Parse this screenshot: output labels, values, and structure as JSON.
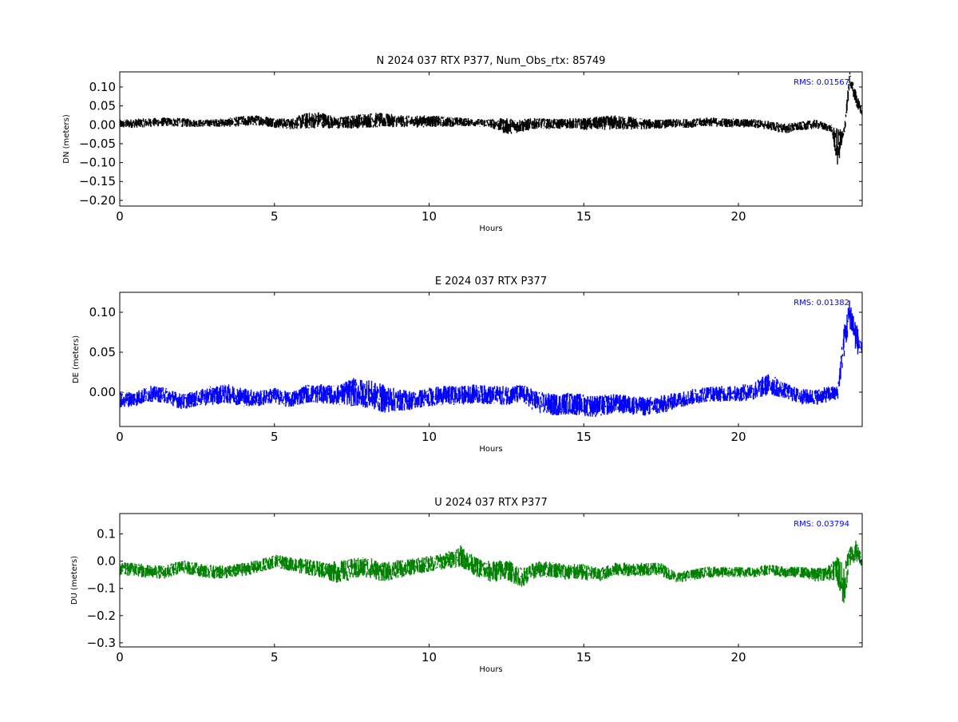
{
  "chart_data": [
    {
      "type": "scatter",
      "title": "N 2024 037 RTX  P377, Num_Obs_rtx: 85749",
      "xlabel": "Hours",
      "ylabel": "DN (meters)",
      "xlim": [
        0,
        24
      ],
      "ylim": [
        -0.215,
        0.14
      ],
      "xticks": [
        0,
        5,
        10,
        15,
        20
      ],
      "xtick_labels": [
        "0",
        "5",
        "10",
        "15",
        "20"
      ],
      "yticks": [
        0.1,
        0.05,
        0.0,
        -0.05,
        -0.1,
        -0.15,
        -0.2
      ],
      "ytick_labels": [
        "0.10",
        "0.05",
        "0.00",
        "−0.05",
        "−0.10",
        "−0.15",
        "−0.20"
      ],
      "annotation": "RMS:  0.01567",
      "color": "#000000",
      "grid": false,
      "series": [
        {
          "x": [
            0,
            0.5,
            1,
            1.5,
            2,
            2.5,
            3,
            3.5,
            4,
            4.5,
            5,
            5.5,
            6,
            6.5,
            7,
            7.5,
            8,
            8.5,
            9,
            9.5,
            10,
            10.5,
            11,
            11.5,
            12,
            12.5,
            13,
            13.5,
            14,
            14.5,
            15,
            15.5,
            16,
            16.5,
            17,
            17.5,
            18,
            18.5,
            19,
            19.5,
            20,
            20.5,
            21,
            21.5,
            22,
            22.5,
            23,
            23.2,
            23.4,
            23.6,
            23.8,
            24
          ],
          "y": [
            0.002,
            0.004,
            0.006,
            0.008,
            0.006,
            0.004,
            0.005,
            0.006,
            0.01,
            0.012,
            0.006,
            0.002,
            0.01,
            0.014,
            0.004,
            0.008,
            0.012,
            0.012,
            0.01,
            0.008,
            0.01,
            0.008,
            0.008,
            0.006,
            0.004,
            -0.004,
            -0.002,
            0.004,
            0.002,
            0.004,
            0.002,
            0.004,
            0.006,
            0.004,
            0.002,
            0.002,
            0.004,
            0.004,
            0.008,
            0.006,
            0.004,
            0.004,
            -0.002,
            -0.01,
            -0.004,
            0.002,
            -0.01,
            -0.06,
            -0.03,
            0.12,
            0.07,
            0.03
          ],
          "spread": [
            0.012,
            0.012,
            0.012,
            0.012,
            0.012,
            0.01,
            0.01,
            0.012,
            0.014,
            0.014,
            0.014,
            0.014,
            0.022,
            0.022,
            0.016,
            0.018,
            0.02,
            0.02,
            0.016,
            0.016,
            0.016,
            0.014,
            0.012,
            0.01,
            0.012,
            0.022,
            0.018,
            0.014,
            0.014,
            0.014,
            0.016,
            0.018,
            0.02,
            0.018,
            0.014,
            0.012,
            0.012,
            0.012,
            0.012,
            0.012,
            0.012,
            0.012,
            0.012,
            0.014,
            0.012,
            0.012,
            0.01,
            0.05,
            0.02,
            0.02,
            0.02,
            0.01
          ]
        }
      ]
    },
    {
      "type": "scatter",
      "title": "E 2024 037 RTX  P377",
      "xlabel": "Hours",
      "ylabel": "DE (meters)",
      "xlim": [
        0,
        24
      ],
      "ylim": [
        -0.043,
        0.125
      ],
      "xticks": [
        0,
        5,
        10,
        15,
        20
      ],
      "xtick_labels": [
        "0",
        "5",
        "10",
        "15",
        "20"
      ],
      "yticks": [
        0.1,
        0.05,
        0.0
      ],
      "ytick_labels": [
        "0.10",
        "0.05",
        "0.00"
      ],
      "annotation": "RMS:  0.01382",
      "color": "#0000ff",
      "grid": false,
      "series": [
        {
          "x": [
            0,
            0.5,
            1,
            1.5,
            2,
            2.5,
            3,
            3.5,
            4,
            4.5,
            5,
            5.5,
            6,
            6.5,
            7,
            7.5,
            8,
            8.5,
            9,
            9.5,
            10,
            10.5,
            11,
            11.5,
            12,
            12.5,
            13,
            13.5,
            14,
            14.5,
            15,
            15.5,
            16,
            16.5,
            17,
            17.5,
            18,
            18.5,
            19,
            19.5,
            20,
            20.5,
            21,
            21.5,
            22,
            22.5,
            23,
            23.2,
            23.4,
            23.6,
            23.8,
            24
          ],
          "y": [
            -0.01,
            -0.008,
            -0.002,
            -0.004,
            -0.012,
            -0.008,
            -0.004,
            -0.002,
            -0.006,
            -0.008,
            -0.004,
            -0.01,
            -0.002,
            -0.002,
            -0.004,
            0.0,
            -0.002,
            -0.008,
            -0.01,
            -0.01,
            -0.006,
            -0.004,
            -0.004,
            -0.002,
            -0.004,
            -0.004,
            -0.002,
            -0.012,
            -0.016,
            -0.014,
            -0.016,
            -0.018,
            -0.014,
            -0.016,
            -0.018,
            -0.016,
            -0.01,
            -0.006,
            -0.002,
            -0.002,
            -0.002,
            0.002,
            0.01,
            0.002,
            -0.006,
            -0.006,
            -0.002,
            -0.002,
            0.06,
            0.1,
            0.07,
            0.05
          ],
          "spread": [
            0.01,
            0.01,
            0.01,
            0.01,
            0.01,
            0.01,
            0.012,
            0.012,
            0.012,
            0.01,
            0.01,
            0.01,
            0.012,
            0.012,
            0.012,
            0.018,
            0.018,
            0.018,
            0.014,
            0.012,
            0.012,
            0.012,
            0.012,
            0.012,
            0.012,
            0.012,
            0.012,
            0.014,
            0.014,
            0.014,
            0.014,
            0.014,
            0.012,
            0.012,
            0.012,
            0.012,
            0.01,
            0.01,
            0.01,
            0.01,
            0.01,
            0.012,
            0.014,
            0.01,
            0.01,
            0.01,
            0.01,
            0.01,
            0.02,
            0.02,
            0.02,
            0.01
          ]
        }
      ]
    },
    {
      "type": "scatter",
      "title": "U 2024 037 RTX  P377",
      "xlabel": "Hours",
      "ylabel": "DU (meters)",
      "xlim": [
        0,
        24
      ],
      "ylim": [
        -0.315,
        0.175
      ],
      "xticks": [
        0,
        5,
        10,
        15,
        20
      ],
      "xtick_labels": [
        "0",
        "5",
        "10",
        "15",
        "20"
      ],
      "yticks": [
        0.1,
        0.0,
        -0.1,
        -0.2,
        -0.3
      ],
      "ytick_labels": [
        "0.1",
        "0.0",
        "−0.1",
        "−0.2",
        "−0.3"
      ],
      "annotation": "RMS:  0.03794",
      "color": "#008000",
      "grid": false,
      "series": [
        {
          "x": [
            0,
            0.5,
            1,
            1.5,
            2,
            2.5,
            3,
            3.5,
            4,
            4.5,
            5,
            5.5,
            6,
            6.5,
            7,
            7.5,
            8,
            8.5,
            9,
            9.5,
            10,
            10.5,
            11,
            11.5,
            12,
            12.5,
            13,
            13.5,
            14,
            14.5,
            15,
            15.5,
            16,
            16.5,
            17,
            17.5,
            18,
            18.5,
            19,
            19.5,
            20,
            20.5,
            21,
            21.5,
            22,
            22.5,
            23,
            23.2,
            23.4,
            23.6,
            23.8,
            24
          ],
          "y": [
            -0.03,
            -0.03,
            -0.04,
            -0.04,
            -0.02,
            -0.03,
            -0.04,
            -0.04,
            -0.03,
            -0.02,
            0.0,
            -0.01,
            -0.02,
            -0.03,
            -0.04,
            -0.03,
            -0.02,
            -0.04,
            -0.03,
            -0.02,
            -0.01,
            0.0,
            0.02,
            -0.02,
            -0.04,
            -0.03,
            -0.06,
            -0.03,
            -0.03,
            -0.04,
            -0.04,
            -0.05,
            -0.03,
            -0.03,
            -0.03,
            -0.03,
            -0.06,
            -0.05,
            -0.04,
            -0.04,
            -0.04,
            -0.04,
            -0.03,
            -0.04,
            -0.04,
            -0.05,
            -0.04,
            -0.03,
            -0.1,
            0.02,
            0.04,
            0.0
          ],
          "spread": [
            0.025,
            0.025,
            0.025,
            0.025,
            0.025,
            0.025,
            0.025,
            0.025,
            0.025,
            0.025,
            0.025,
            0.025,
            0.03,
            0.03,
            0.04,
            0.04,
            0.04,
            0.035,
            0.035,
            0.03,
            0.03,
            0.03,
            0.04,
            0.035,
            0.04,
            0.04,
            0.035,
            0.03,
            0.03,
            0.03,
            0.03,
            0.025,
            0.025,
            0.025,
            0.025,
            0.025,
            0.02,
            0.02,
            0.02,
            0.02,
            0.02,
            0.02,
            0.02,
            0.02,
            0.02,
            0.025,
            0.03,
            0.06,
            0.08,
            0.04,
            0.04,
            0.02
          ]
        }
      ]
    }
  ]
}
